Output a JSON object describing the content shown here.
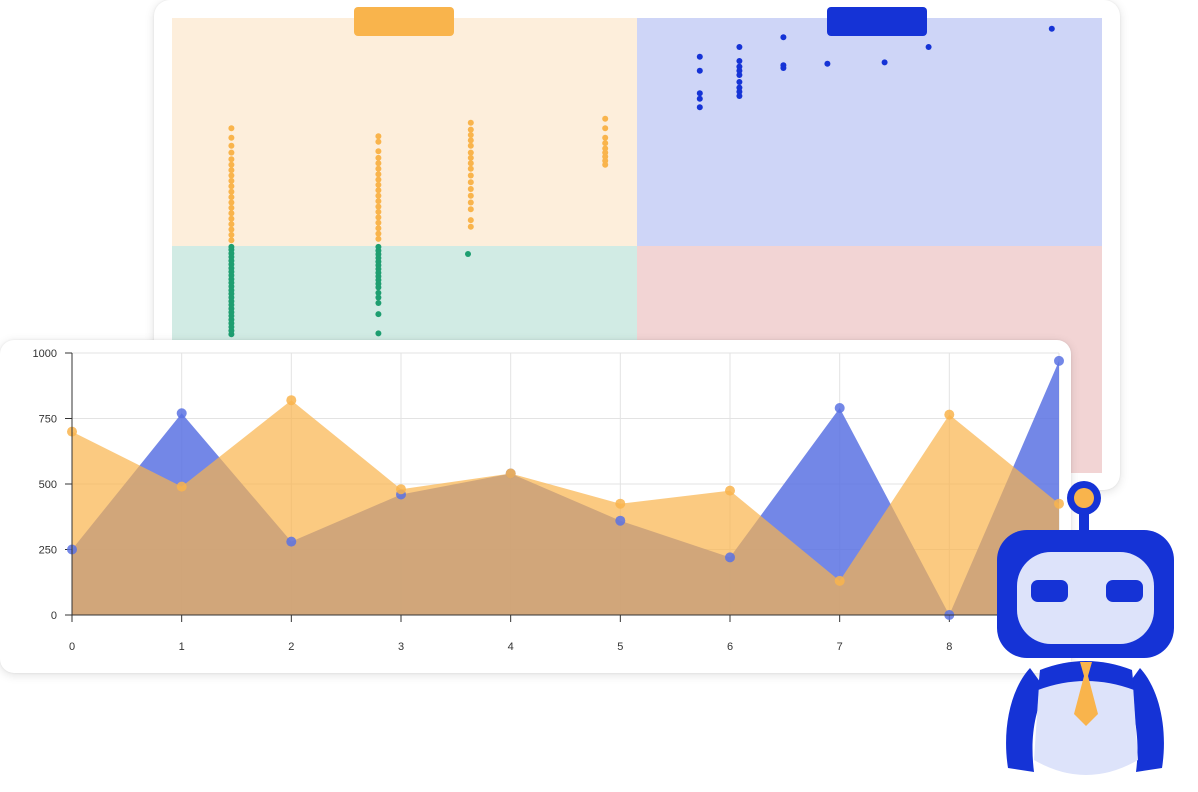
{
  "colors": {
    "orange": "#F9B44C",
    "blue": "#1533D6",
    "green": "#1E9E70",
    "quadrant_top_left": "#FDEEDB",
    "quadrant_top_right": "#CED5F7",
    "quadrant_bottom_left": "#D1EBE4",
    "quadrant_bottom_right": "#F2D4D4",
    "area_blue": "#5B72E3",
    "area_orange": "#F9B44C",
    "grid": "#E3E3E3",
    "robot_blue": "#1533D6",
    "robot_face": "#DDE3FA"
  },
  "chart_data": [
    {
      "type": "scatter",
      "legend": [
        {
          "color": "#F9B44C"
        },
        {
          "color": "#1533D6"
        }
      ],
      "quadrants": [
        "top-left",
        "top-right",
        "bottom-left",
        "bottom-right"
      ],
      "series": [
        {
          "color": "#F9B44C",
          "points": [
            [
              0.07,
              0.15
            ],
            [
              0.07,
              0.22
            ],
            [
              0.07,
              0.28
            ],
            [
              0.07,
              0.33
            ],
            [
              0.07,
              0.38
            ],
            [
              0.07,
              0.42
            ],
            [
              0.07,
              0.46
            ],
            [
              0.07,
              0.5
            ],
            [
              0.07,
              0.54
            ],
            [
              0.07,
              0.58
            ],
            [
              0.07,
              0.62
            ],
            [
              0.07,
              0.66
            ],
            [
              0.07,
              0.7
            ],
            [
              0.07,
              0.74
            ],
            [
              0.07,
              0.78
            ],
            [
              0.07,
              0.82
            ],
            [
              0.07,
              0.86
            ],
            [
              0.07,
              0.9
            ],
            [
              0.07,
              0.94
            ],
            [
              0.07,
              0.98
            ],
            [
              0.42,
              0.21
            ],
            [
              0.42,
              0.25
            ],
            [
              0.42,
              0.32
            ],
            [
              0.42,
              0.37
            ],
            [
              0.42,
              0.41
            ],
            [
              0.42,
              0.45
            ],
            [
              0.42,
              0.49
            ],
            [
              0.42,
              0.53
            ],
            [
              0.42,
              0.57
            ],
            [
              0.42,
              0.61
            ],
            [
              0.42,
              0.65
            ],
            [
              0.42,
              0.69
            ],
            [
              0.42,
              0.73
            ],
            [
              0.42,
              0.77
            ],
            [
              0.42,
              0.81
            ],
            [
              0.42,
              0.85
            ],
            [
              0.42,
              0.89
            ],
            [
              0.42,
              0.93
            ],
            [
              0.42,
              0.97
            ],
            [
              0.64,
              0.11
            ],
            [
              0.64,
              0.16
            ],
            [
              0.64,
              0.2
            ],
            [
              0.64,
              0.24
            ],
            [
              0.64,
              0.28
            ],
            [
              0.64,
              0.33
            ],
            [
              0.64,
              0.37
            ],
            [
              0.64,
              0.41
            ],
            [
              0.64,
              0.45
            ],
            [
              0.64,
              0.5
            ],
            [
              0.64,
              0.55
            ],
            [
              0.64,
              0.6
            ],
            [
              0.64,
              0.65
            ],
            [
              0.64,
              0.7
            ],
            [
              0.64,
              0.75
            ],
            [
              0.64,
              0.83
            ],
            [
              0.64,
              0.88
            ],
            [
              0.96,
              0.08
            ],
            [
              0.96,
              0.15
            ],
            [
              0.96,
              0.22
            ],
            [
              0.96,
              0.26
            ],
            [
              0.96,
              0.3
            ],
            [
              0.96,
              0.33
            ],
            [
              0.96,
              0.36
            ],
            [
              0.96,
              0.39
            ],
            [
              0.96,
              0.42
            ]
          ]
        },
        {
          "color": "#1533D6",
          "points": [
            [
              0.12,
              0.78
            ],
            [
              0.12,
              0.68
            ],
            [
              0.12,
              0.52
            ],
            [
              0.12,
              0.48
            ],
            [
              0.12,
              0.42
            ],
            [
              0.21,
              0.85
            ],
            [
              0.21,
              0.75
            ],
            [
              0.21,
              0.71
            ],
            [
              0.21,
              0.68
            ],
            [
              0.21,
              0.65
            ],
            [
              0.21,
              0.6
            ],
            [
              0.21,
              0.56
            ],
            [
              0.21,
              0.53
            ],
            [
              0.21,
              0.5
            ],
            [
              0.31,
              0.92
            ],
            [
              0.31,
              0.72
            ],
            [
              0.31,
              0.7
            ],
            [
              0.41,
              0.73
            ],
            [
              0.54,
              0.74
            ],
            [
              0.64,
              0.85
            ],
            [
              0.92,
              0.98
            ]
          ]
        },
        {
          "color": "#1E9E70",
          "points": [
            [
              0.07,
              0.99
            ],
            [
              0.07,
              0.96
            ],
            [
              0.07,
              0.92
            ],
            [
              0.07,
              0.88
            ],
            [
              0.07,
              0.84
            ],
            [
              0.07,
              0.8
            ],
            [
              0.07,
              0.76
            ],
            [
              0.07,
              0.72
            ],
            [
              0.07,
              0.68
            ],
            [
              0.07,
              0.64
            ],
            [
              0.07,
              0.6
            ],
            [
              0.07,
              0.56
            ],
            [
              0.07,
              0.52
            ],
            [
              0.07,
              0.48
            ],
            [
              0.07,
              0.44
            ],
            [
              0.07,
              0.4
            ],
            [
              0.07,
              0.36
            ],
            [
              0.07,
              0.32
            ],
            [
              0.07,
              0.28
            ],
            [
              0.07,
              0.24
            ],
            [
              0.07,
              0.2
            ],
            [
              0.07,
              0.16
            ],
            [
              0.07,
              0.12
            ],
            [
              0.07,
              0.08
            ],
            [
              0.07,
              0.04
            ],
            [
              0.42,
              0.99
            ],
            [
              0.42,
              0.95
            ],
            [
              0.42,
              0.91
            ],
            [
              0.42,
              0.87
            ],
            [
              0.42,
              0.83
            ],
            [
              0.42,
              0.79
            ],
            [
              0.42,
              0.75
            ],
            [
              0.42,
              0.71
            ],
            [
              0.42,
              0.67
            ],
            [
              0.42,
              0.63
            ],
            [
              0.42,
              0.59
            ],
            [
              0.42,
              0.55
            ],
            [
              0.42,
              0.49
            ],
            [
              0.42,
              0.44
            ],
            [
              0.42,
              0.38
            ],
            [
              0.42,
              0.26
            ],
            [
              0.42,
              0.05
            ],
            [
              0.64,
              0.92
            ]
          ]
        }
      ]
    },
    {
      "type": "area",
      "x": [
        0,
        1,
        2,
        3,
        4,
        5,
        6,
        7,
        8,
        9
      ],
      "ylim": [
        0,
        1000
      ],
      "yticks": [
        0,
        250,
        500,
        750,
        1000
      ],
      "grid": true,
      "series": [
        {
          "color": "#5B72E3",
          "values": [
            250,
            770,
            280,
            460,
            540,
            360,
            220,
            790,
            0,
            970
          ]
        },
        {
          "color": "#F9B44C",
          "values": [
            700,
            490,
            820,
            480,
            540,
            425,
            475,
            130,
            765,
            425
          ]
        }
      ]
    }
  ]
}
